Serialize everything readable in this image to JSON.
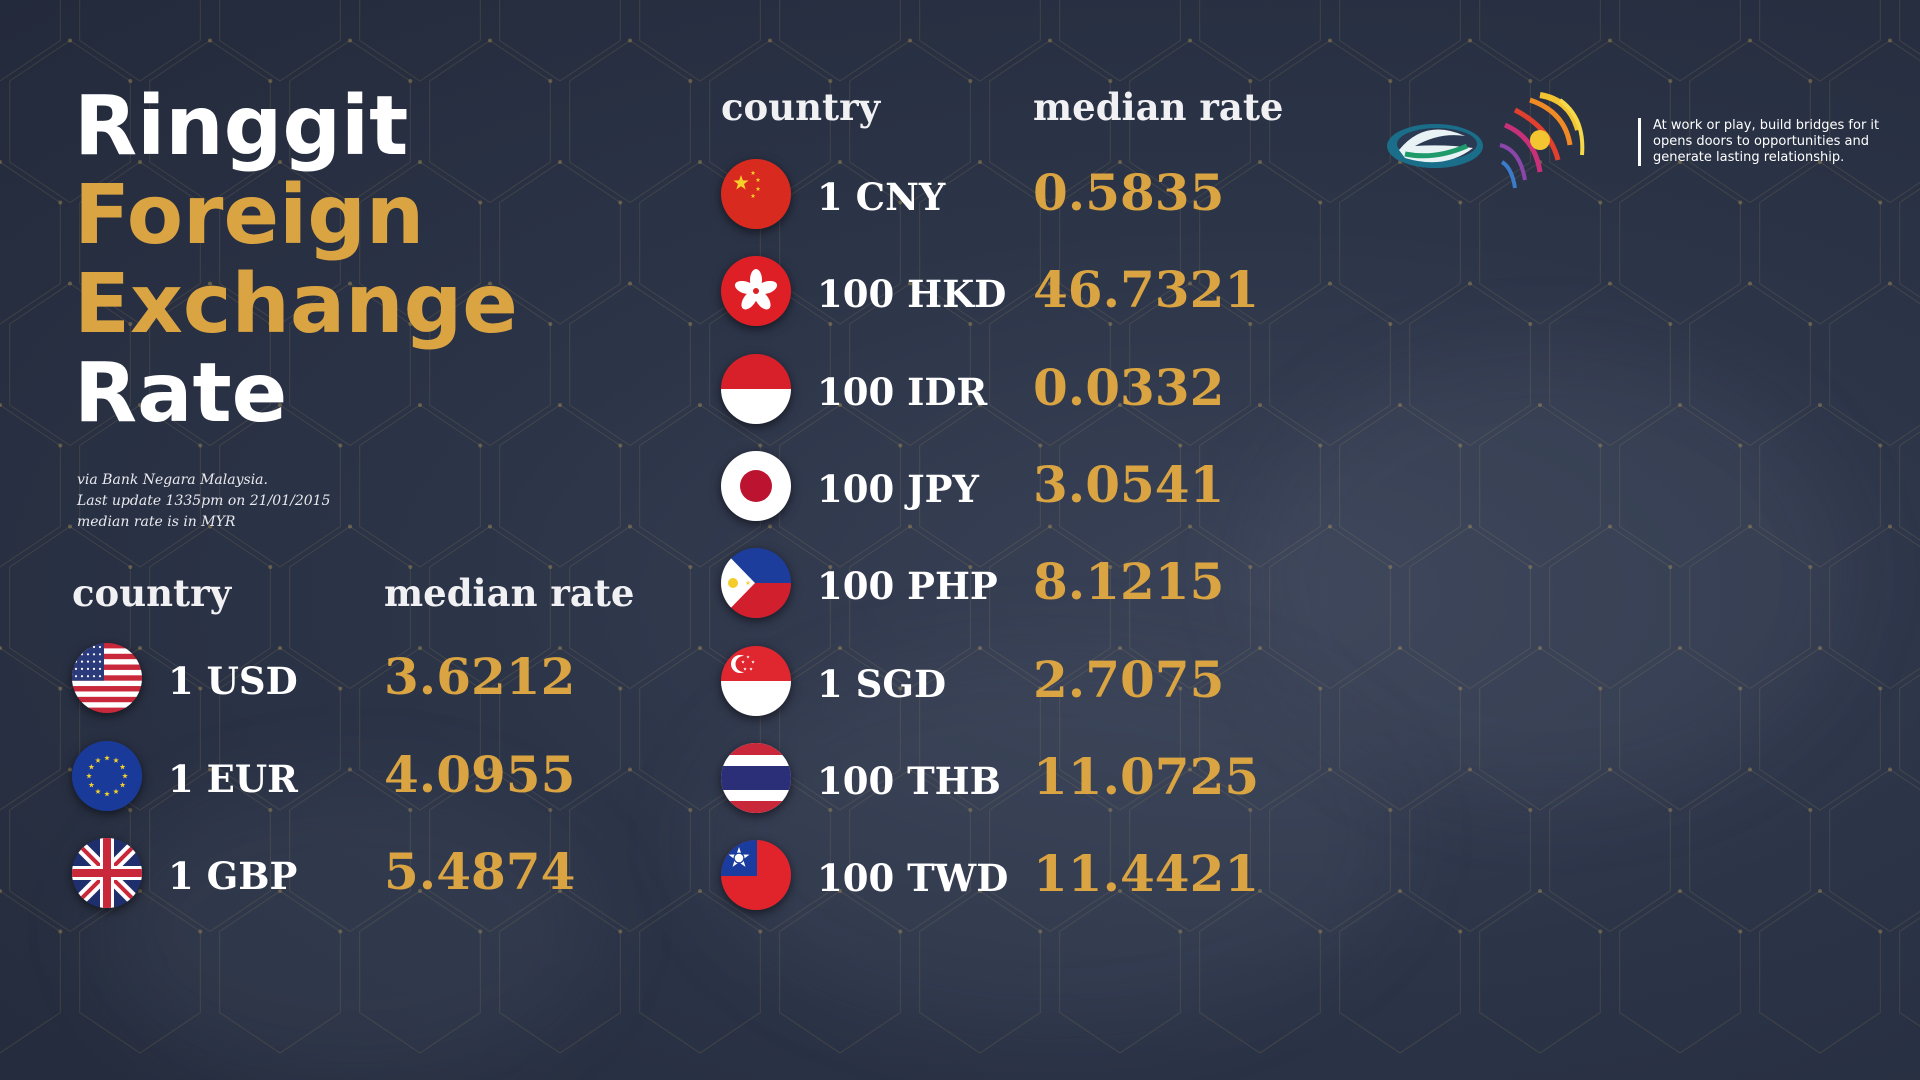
{
  "title": {
    "line1": "Ringgit",
    "line2": "Foreign",
    "line3": "Exchange",
    "line4": "Rate"
  },
  "subtitle": {
    "line1": "via Bank Negara Malaysia.",
    "line2": "Last update 1335pm on 21/01/2015",
    "line3": "median rate is in MYR"
  },
  "headers": {
    "country": "country",
    "median_rate": "median rate"
  },
  "left_rates": [
    {
      "currency": "1 USD",
      "rate": "3.6212",
      "flag": "us-flag-icon"
    },
    {
      "currency": "1 EUR",
      "rate": "4.0955",
      "flag": "eu-flag-icon"
    },
    {
      "currency": "1 GBP",
      "rate": "5.4874",
      "flag": "uk-flag-icon"
    }
  ],
  "right_rates": [
    {
      "currency": "1 CNY",
      "rate": "0.5835",
      "flag": "cn-flag-icon"
    },
    {
      "currency": "100 HKD",
      "rate": "46.7321",
      "flag": "hk-flag-icon"
    },
    {
      "currency": "100 IDR",
      "rate": "0.0332",
      "flag": "id-flag-icon"
    },
    {
      "currency": "100 JPY",
      "rate": "3.0541",
      "flag": "jp-flag-icon"
    },
    {
      "currency": "100 PHP",
      "rate": "8.1215",
      "flag": "ph-flag-icon"
    },
    {
      "currency": "1 SGD",
      "rate": "2.7075",
      "flag": "sg-flag-icon"
    },
    {
      "currency": "100 THB",
      "rate": "11.0725",
      "flag": "th-flag-icon"
    },
    {
      "currency": "100 TWD",
      "rate": "11.4421",
      "flag": "tw-flag-icon"
    }
  ],
  "tagline": "At work or play, build bridges for it opens doors to opportunities and generate lasting relationship.",
  "colors": {
    "gold": "#d9a441",
    "background": "#2c3448"
  }
}
